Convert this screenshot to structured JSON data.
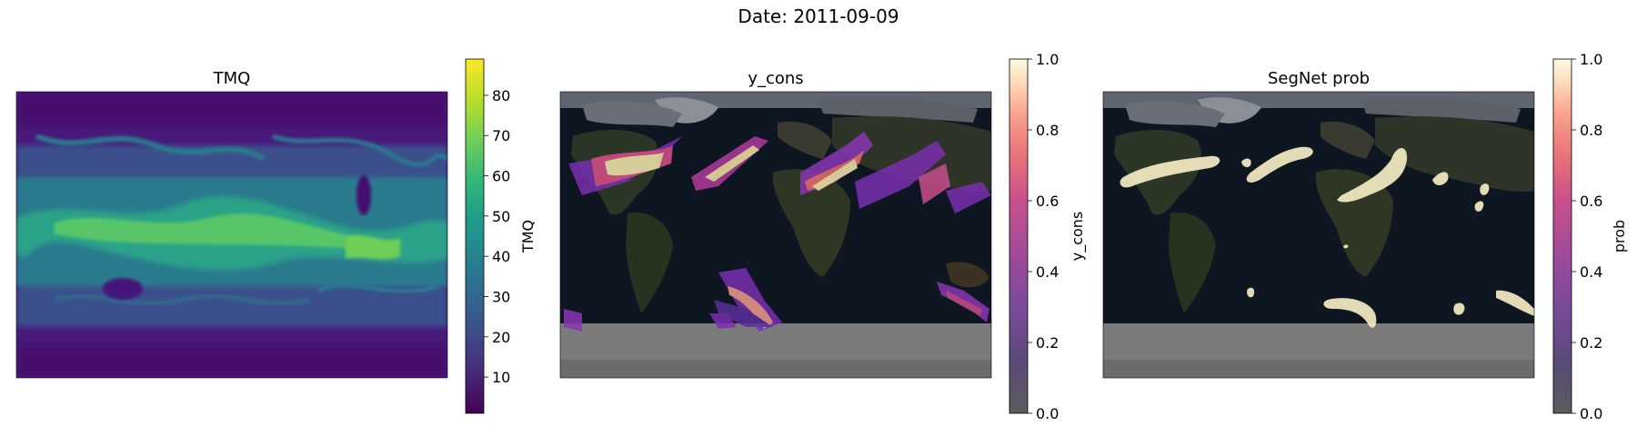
{
  "figure": {
    "suptitle": "Date: 2011-09-09"
  },
  "panels": [
    {
      "title": "TMQ",
      "colorbar_label": "TMQ",
      "colormap": "viridis",
      "ticks": [
        "10",
        "20",
        "30",
        "40",
        "50",
        "60",
        "70",
        "80"
      ],
      "tick_values": [
        10,
        20,
        30,
        40,
        50,
        60,
        70,
        80
      ],
      "range": [
        1,
        89
      ]
    },
    {
      "title": "y_cons",
      "colorbar_label": "y_cons",
      "colormap": "magma",
      "ticks": [
        "0.0",
        "0.2",
        "0.4",
        "0.6",
        "0.8",
        "1.0"
      ],
      "tick_values": [
        0,
        0.2,
        0.4,
        0.6,
        0.8,
        1.0
      ],
      "range": [
        0,
        1
      ]
    },
    {
      "title": "SegNet prob",
      "colorbar_label": "prob",
      "colormap": "magma",
      "ticks": [
        "0.0",
        "0.2",
        "0.4",
        "0.6",
        "0.8",
        "1.0"
      ],
      "tick_values": [
        0,
        0.2,
        0.4,
        0.6,
        0.8,
        1.0
      ],
      "range": [
        0,
        1
      ]
    }
  ],
  "colors": {
    "viridis": [
      "#440154",
      "#482878",
      "#3e4a89",
      "#31688e",
      "#26828e",
      "#1f9e89",
      "#35b779",
      "#6ece58",
      "#b5de2b",
      "#fde725"
    ],
    "magma": [
      "#5b5b5b",
      "#5a4a7a",
      "#7a4a9a",
      "#a04a9a",
      "#c8508a",
      "#e8707a",
      "#f8a08a",
      "#fcd8b8",
      "#fcfbe0"
    ],
    "ocean": "#0e1622",
    "land": "#2e3a28",
    "ice": "#8a8a8a"
  }
}
